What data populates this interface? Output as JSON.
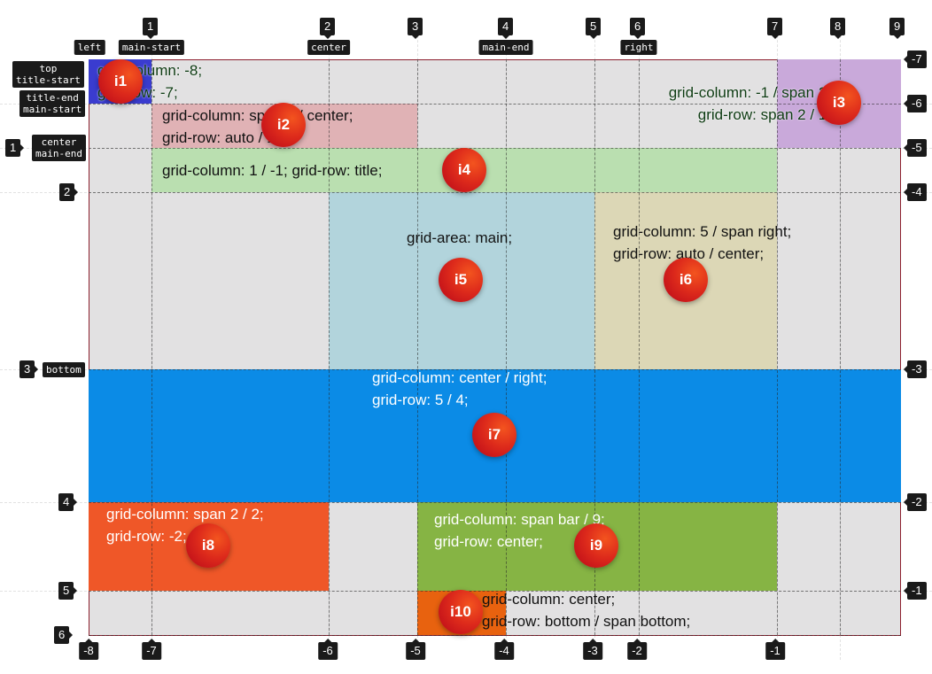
{
  "grid": {
    "column_lines_positive": [
      "1",
      "2",
      "3",
      "4",
      "5",
      "6",
      "7",
      "8",
      "9"
    ],
    "column_lines_negative": [
      "-8",
      "-7",
      "-6",
      "-5",
      "-4",
      "-3",
      "-2",
      "-1"
    ],
    "row_lines_positive": [
      "1",
      "2",
      "3",
      "4",
      "5",
      "6"
    ],
    "row_lines_negative": [
      "-7",
      "-6",
      "-5",
      "-4",
      "-3",
      "-2",
      "-1"
    ],
    "column_line_names": [
      "left",
      "main-start",
      "center",
      "main-end",
      "right"
    ],
    "row_line_names": [
      "top\ntitle-start",
      "title-end\nmain-start",
      "center\nmain-end",
      "bottom"
    ]
  },
  "items": [
    {
      "badge": "i1",
      "code": [
        "grid-column: -8;",
        "grid-row: -7;"
      ],
      "color": "#3a3ccf"
    },
    {
      "badge": "i2",
      "code": [
        "grid-column: span 2 / center;",
        "grid-row: auto / 1;"
      ],
      "color": "#e0b2b5"
    },
    {
      "badge": "i3",
      "code": [
        "grid-column: -1 / span 2;",
        "grid-row: span 2 / 1;"
      ],
      "color": "#c9a9da"
    },
    {
      "badge": "i4",
      "code": [
        "grid-column: 1 / -1; grid-row: title;"
      ],
      "color": "#badfb0"
    },
    {
      "badge": "i5",
      "code": [
        "grid-area: main;"
      ],
      "color": "#b2d4dc"
    },
    {
      "badge": "i6",
      "code": [
        "grid-column: 5 / span right;",
        "grid-row: auto / center;"
      ],
      "color": "#dcd7b6"
    },
    {
      "badge": "i7",
      "code": [
        "grid-column: center / right;",
        "grid-row: 5 / 4;"
      ],
      "color": "#0b8be6"
    },
    {
      "badge": "i8",
      "code": [
        "grid-column: span 2 / 2;",
        "grid-row: -2;"
      ],
      "color": "#ef5728"
    },
    {
      "badge": "i9",
      "code": [
        "grid-column: span bar / 9;",
        "grid-row: center;"
      ],
      "color": "#86b444"
    },
    {
      "badge": "i10",
      "code": [
        "grid-column: center;",
        "grid-row: bottom / span bottom;"
      ],
      "color": "#e8620f"
    }
  ]
}
